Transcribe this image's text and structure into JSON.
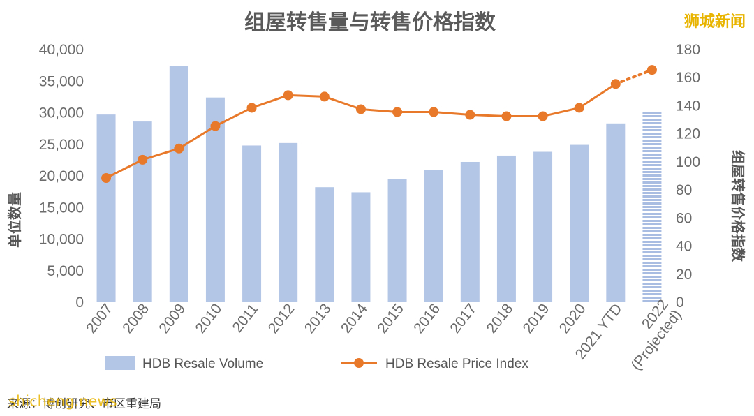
{
  "chart_data": {
    "type": "bar",
    "title": "组屋转售量与转售价格指数",
    "categories": [
      "2007",
      "2008",
      "2009",
      "2010",
      "2011",
      "2012",
      "2013",
      "2014",
      "2015",
      "2016",
      "2017",
      "2018",
      "2019",
      "2020",
      "2021 YTD",
      "2022 (Projected)"
    ],
    "category_lines": [
      [
        "2007"
      ],
      [
        "2008"
      ],
      [
        "2009"
      ],
      [
        "2010"
      ],
      [
        "2011"
      ],
      [
        "2012"
      ],
      [
        "2013"
      ],
      [
        "2014"
      ],
      [
        "2015"
      ],
      [
        "2016"
      ],
      [
        "2017"
      ],
      [
        "2018"
      ],
      [
        "2019"
      ],
      [
        "2020"
      ],
      [
        "2021 YTD"
      ],
      [
        "2022",
        "(Projected)"
      ]
    ],
    "series": [
      {
        "name": "HDB Resale Volume",
        "type": "bar",
        "axis": "left",
        "values": [
          29600,
          28500,
          37300,
          32300,
          24700,
          25100,
          18100,
          17300,
          19400,
          20800,
          22100,
          23100,
          23700,
          24800,
          28200,
          30000
        ],
        "projected_index": 15
      },
      {
        "name": "HDB Resale Price Index",
        "type": "line",
        "axis": "right",
        "values": [
          88,
          101,
          109,
          125,
          138,
          147,
          146,
          137,
          135,
          135,
          133,
          132,
          132,
          138,
          155,
          165
        ],
        "projected_index": 15
      }
    ],
    "y_left": {
      "label": "单位数量",
      "range": [
        0,
        40000
      ],
      "ticks": [
        0,
        5000,
        10000,
        15000,
        20000,
        25000,
        30000,
        35000,
        40000
      ],
      "tick_labels": [
        "0",
        "5,000",
        "10,000",
        "15,000",
        "20,000",
        "25,000",
        "30,000",
        "35,000",
        "40,000"
      ]
    },
    "y_right": {
      "label": "组屋转售价格指数",
      "range": [
        0,
        180
      ],
      "ticks": [
        0,
        20,
        40,
        60,
        80,
        100,
        120,
        140,
        160,
        180
      ],
      "tick_labels": [
        "0",
        "20",
        "40",
        "60",
        "80",
        "100",
        "120",
        "140",
        "160",
        "180"
      ]
    },
    "legend_position": "bottom",
    "grid": false,
    "colors": {
      "bar": "#b4c6e6",
      "bar_projected": "#a9bde2",
      "line": "#e8792b",
      "text": "#6b6b6b"
    }
  },
  "source": "来源：博创研究、市区重建局",
  "watermark": {
    "brand": "狮城新闻",
    "site": "shicheng.news"
  }
}
